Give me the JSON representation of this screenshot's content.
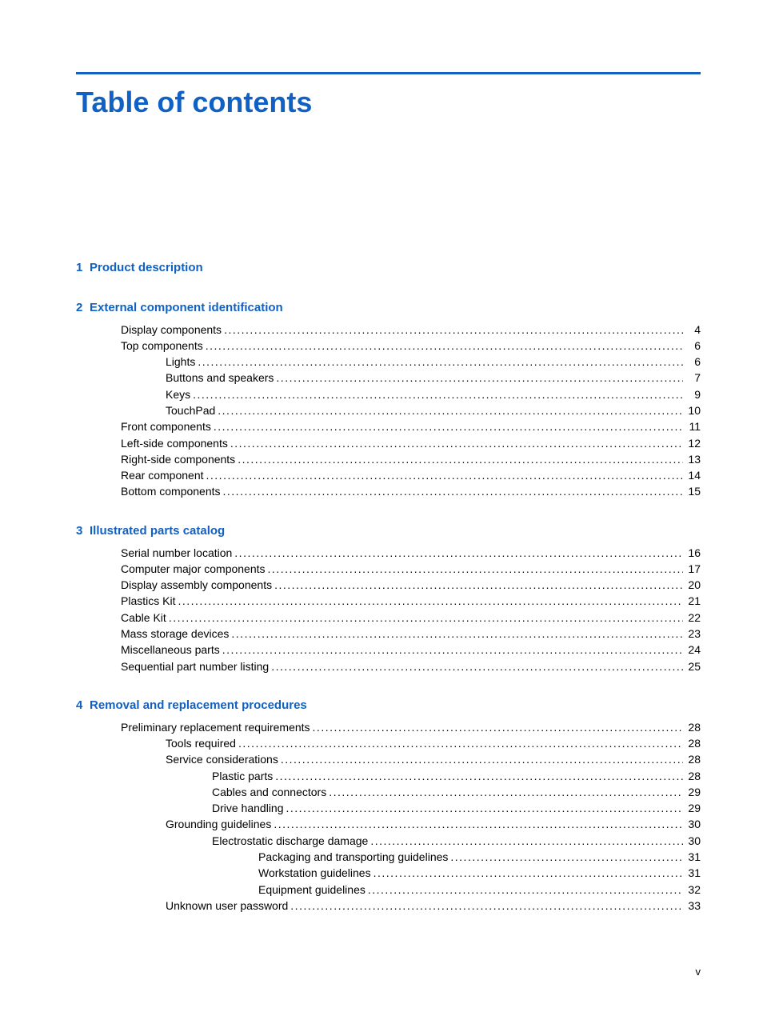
{
  "colors": {
    "brand_blue": "#1061c3",
    "text": "#000000",
    "background": "#ffffff"
  },
  "typography": {
    "title_fontsize": 36,
    "heading_fontsize": 15,
    "body_fontsize": 14,
    "font_family": "Arial, Helvetica, sans-serif"
  },
  "title": "Table of contents",
  "page_number_label": "v",
  "sections": [
    {
      "number": "1",
      "heading": "Product description",
      "entries": []
    },
    {
      "number": "2",
      "heading": "External component identification",
      "entries": [
        {
          "indent": 1,
          "label": "Display components",
          "page": "4"
        },
        {
          "indent": 1,
          "label": "Top components",
          "page": "6"
        },
        {
          "indent": 2,
          "label": "Lights",
          "page": "6"
        },
        {
          "indent": 2,
          "label": "Buttons and speakers",
          "page": "7"
        },
        {
          "indent": 2,
          "label": "Keys",
          "page": "9"
        },
        {
          "indent": 2,
          "label": "TouchPad",
          "page": "10"
        },
        {
          "indent": 1,
          "label": "Front components",
          "page": "11"
        },
        {
          "indent": 1,
          "label": "Left-side components",
          "page": "12"
        },
        {
          "indent": 1,
          "label": "Right-side components",
          "page": "13"
        },
        {
          "indent": 1,
          "label": "Rear component",
          "page": "14"
        },
        {
          "indent": 1,
          "label": "Bottom components",
          "page": "15"
        }
      ]
    },
    {
      "number": "3",
      "heading": "Illustrated parts catalog",
      "entries": [
        {
          "indent": 1,
          "label": "Serial number location",
          "page": "16"
        },
        {
          "indent": 1,
          "label": "Computer major components",
          "page": "17"
        },
        {
          "indent": 1,
          "label": "Display assembly components",
          "page": "20"
        },
        {
          "indent": 1,
          "label": "Plastics Kit",
          "page": "21"
        },
        {
          "indent": 1,
          "label": "Cable Kit",
          "page": "22"
        },
        {
          "indent": 1,
          "label": "Mass storage devices",
          "page": "23"
        },
        {
          "indent": 1,
          "label": "Miscellaneous parts",
          "page": "24"
        },
        {
          "indent": 1,
          "label": "Sequential part number listing",
          "page": "25"
        }
      ]
    },
    {
      "number": "4",
      "heading": "Removal and replacement procedures",
      "entries": [
        {
          "indent": 1,
          "label": "Preliminary replacement requirements",
          "page": "28"
        },
        {
          "indent": 2,
          "label": "Tools required",
          "page": "28"
        },
        {
          "indent": 2,
          "label": "Service considerations",
          "page": "28"
        },
        {
          "indent": 3,
          "label": "Plastic parts",
          "page": "28"
        },
        {
          "indent": 3,
          "label": "Cables and connectors",
          "page": "29"
        },
        {
          "indent": 3,
          "label": "Drive handling",
          "page": "29"
        },
        {
          "indent": 2,
          "label": "Grounding guidelines",
          "page": "30"
        },
        {
          "indent": 3,
          "label": "Electrostatic discharge damage",
          "page": "30"
        },
        {
          "indent": 4,
          "label": "Packaging and transporting guidelines",
          "page": "31"
        },
        {
          "indent": 4,
          "label": "Workstation guidelines",
          "page": "31"
        },
        {
          "indent": 4,
          "label": "Equipment guidelines",
          "page": "32"
        },
        {
          "indent": 2,
          "label": "Unknown user password",
          "page": "33"
        }
      ]
    }
  ]
}
